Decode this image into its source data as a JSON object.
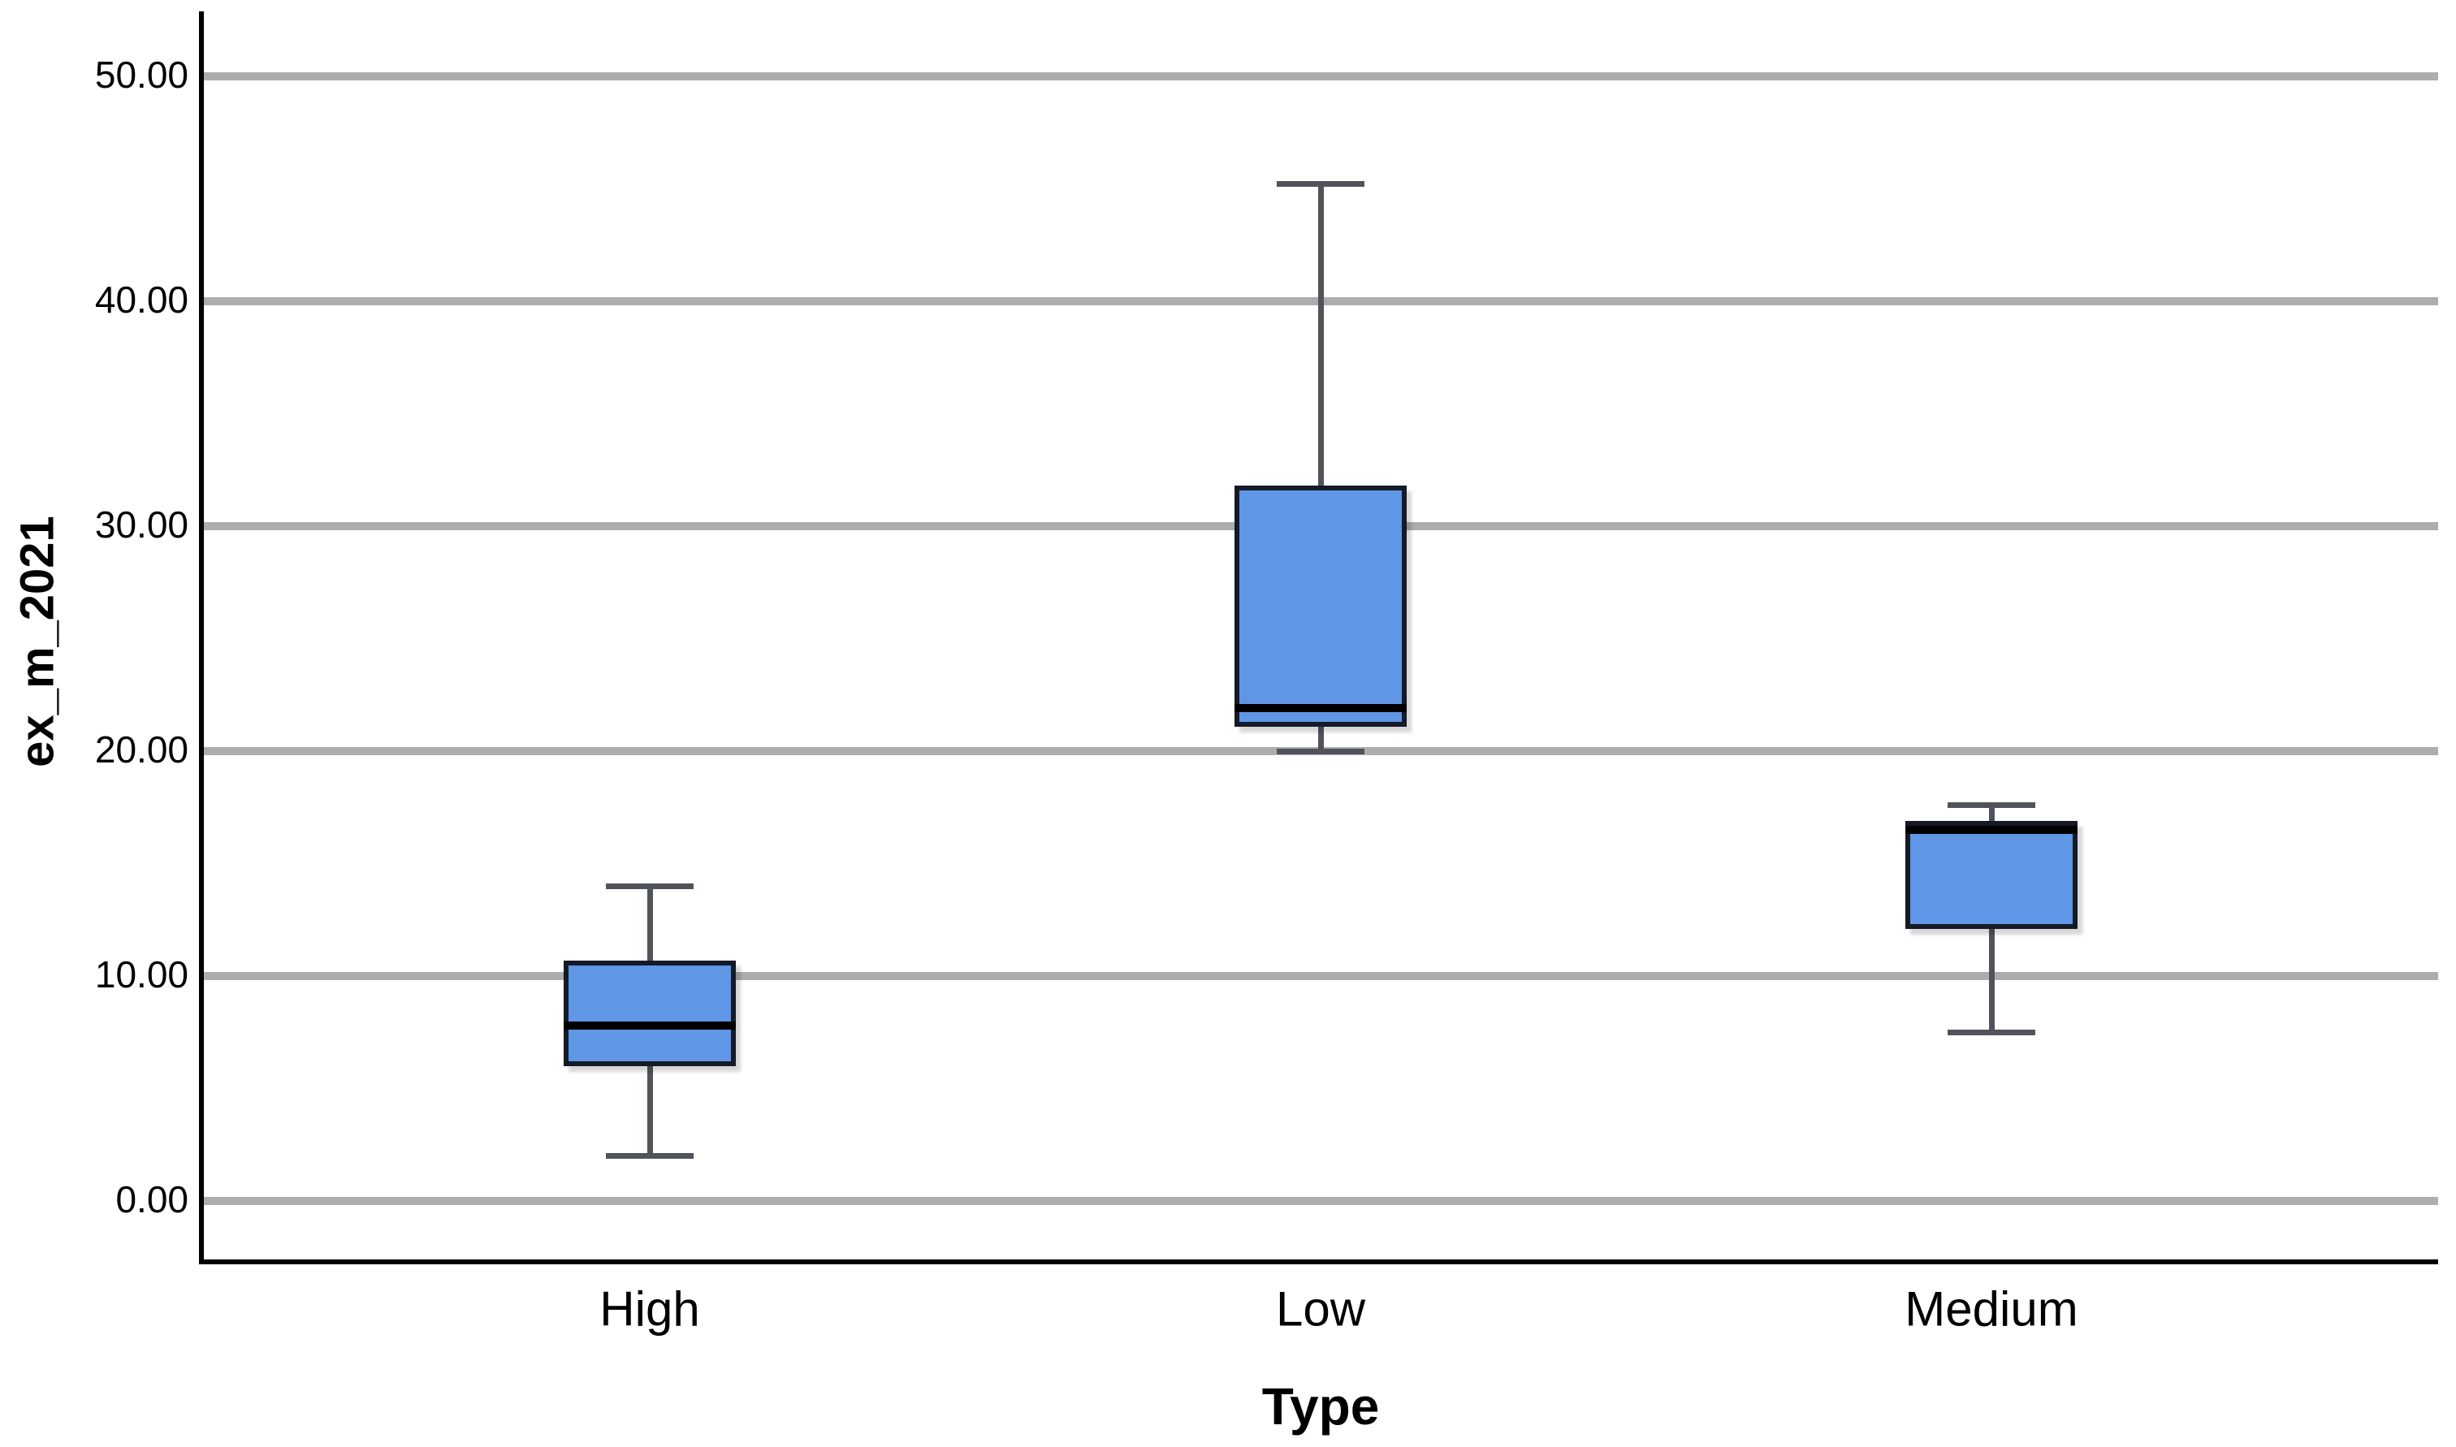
{
  "chart_data": {
    "type": "box",
    "title": "",
    "xlabel": "Type",
    "ylabel": "ex_m_2021",
    "categories": [
      "High",
      "Low",
      "Medium"
    ],
    "series": [
      {
        "name": "High",
        "min": 2.0,
        "q1": 6.0,
        "median": 7.8,
        "q3": 10.7,
        "max": 14.0
      },
      {
        "name": "Low",
        "min": 20.0,
        "q1": 21.1,
        "median": 21.9,
        "q3": 31.8,
        "max": 45.2
      },
      {
        "name": "Medium",
        "min": 7.5,
        "q1": 12.1,
        "median": 16.5,
        "q3": 16.9,
        "max": 17.6
      }
    ],
    "y_ticks": [
      "50.00",
      "40.00",
      "30.00",
      "20.00",
      "10.00",
      "0.00"
    ],
    "y_tick_values": [
      50,
      40,
      30,
      20,
      10,
      0
    ],
    "ylim": [
      -2.7,
      52.6
    ],
    "grid": true,
    "legend": "none",
    "colors": {
      "box_fill": "#5f96e6",
      "box_border": "#141a26",
      "median": "#000000",
      "whisker": "#50545a",
      "gridline": "#adadad",
      "axis": "#000000",
      "background": "#ffffff",
      "text": "#000000"
    }
  }
}
